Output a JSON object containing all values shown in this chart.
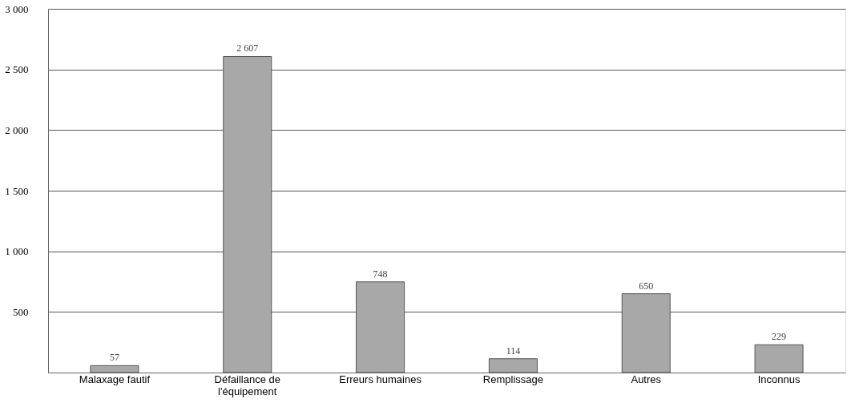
{
  "chart_data": {
    "type": "bar",
    "categories": [
      "Malaxage fautif",
      "Défaillance de\nl'équipement",
      "Erreurs humaines",
      "Remplissage",
      "Autres",
      "Inconnus"
    ],
    "values": [
      57,
      2607,
      748,
      114,
      650,
      229
    ],
    "value_labels": [
      "57",
      "2 607",
      "748",
      "114",
      "650",
      "229"
    ],
    "color": "#a8a8a8",
    "ylim": [
      0,
      3000
    ],
    "yticks": [
      {
        "value": 500,
        "label": "500"
      },
      {
        "value": 1000,
        "label": "1 000"
      },
      {
        "value": 1500,
        "label": "1 500"
      },
      {
        "value": 2000,
        "label": "2 000"
      },
      {
        "value": 2500,
        "label": "2 500"
      },
      {
        "value": 3000,
        "label": "3 000"
      }
    ],
    "grid": "y"
  }
}
